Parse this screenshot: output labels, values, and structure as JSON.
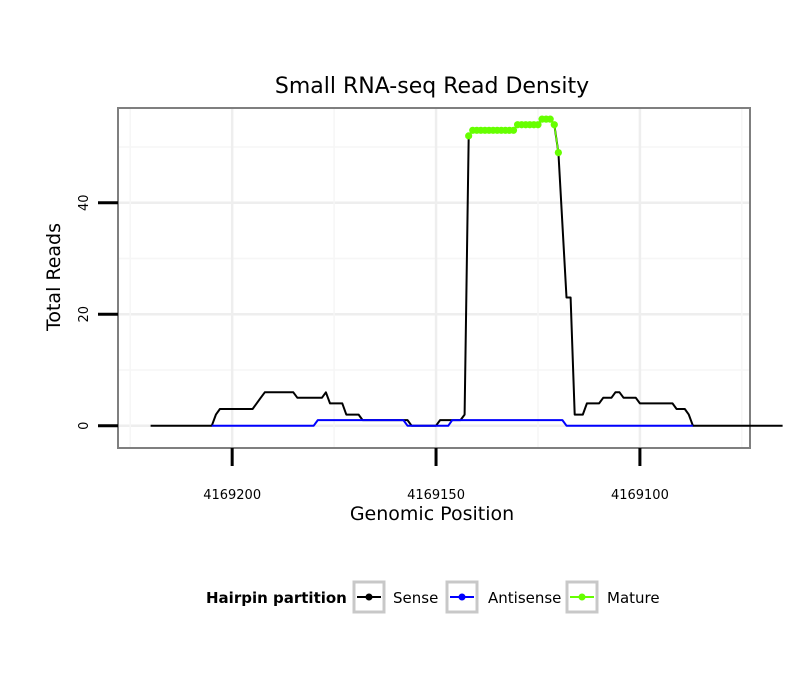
{
  "chart_data": {
    "type": "line",
    "title": "Small RNA-seq Read Density",
    "xlabel": "Genomic Position",
    "ylabel": "Total Reads",
    "x_reversed": true,
    "xlim": [
      4169228,
      4169073
    ],
    "ylim": [
      -4,
      57
    ],
    "x_ticks": [
      4169200,
      4169150,
      4169100
    ],
    "x_tick_labels": [
      "4169200",
      "4169150",
      "4169100"
    ],
    "y_ticks": [
      0,
      20,
      40
    ],
    "y_tick_labels": [
      "0",
      "20",
      "40"
    ],
    "grid": true,
    "legend_title": "Hairpin partition",
    "legend_position": "bottom",
    "series": [
      {
        "name": "Sense",
        "color": "#000000",
        "points": [
          [
            4169220,
            0
          ],
          [
            4169212,
            0
          ],
          [
            4169206,
            0
          ],
          [
            4169205,
            0
          ],
          [
            4169204,
            2
          ],
          [
            4169203,
            3
          ],
          [
            4169202,
            3
          ],
          [
            4169195,
            3
          ],
          [
            4169193,
            5
          ],
          [
            4169192,
            6
          ],
          [
            4169185,
            6
          ],
          [
            4169184,
            5
          ],
          [
            4169178,
            5
          ],
          [
            4169177,
            6
          ],
          [
            4169176,
            4
          ],
          [
            4169173,
            4
          ],
          [
            4169172,
            2
          ],
          [
            4169169,
            2
          ],
          [
            4169168,
            1
          ],
          [
            4169157,
            1
          ],
          [
            4169156,
            0
          ],
          [
            4169150,
            0
          ],
          [
            4169149,
            1
          ],
          [
            4169144,
            1
          ],
          [
            4169143,
            2
          ],
          [
            4169142,
            52
          ],
          [
            4169141,
            53
          ],
          [
            4169131,
            53
          ],
          [
            4169130,
            54
          ],
          [
            4169125,
            54
          ],
          [
            4169124,
            55
          ],
          [
            4169122,
            55
          ],
          [
            4169121,
            54
          ],
          [
            4169120,
            49
          ],
          [
            4169118,
            23
          ],
          [
            4169117,
            23
          ],
          [
            4169116,
            2
          ],
          [
            4169114,
            2
          ],
          [
            4169113,
            4
          ],
          [
            4169110,
            4
          ],
          [
            4169109,
            5
          ],
          [
            4169107,
            5
          ],
          [
            4169106,
            6
          ],
          [
            4169105,
            6
          ],
          [
            4169104,
            5
          ],
          [
            4169101,
            5
          ],
          [
            4169100,
            4
          ],
          [
            4169092,
            4
          ],
          [
            4169091,
            3
          ],
          [
            4169089,
            3
          ],
          [
            4169088,
            2
          ],
          [
            4169087,
            0
          ],
          [
            4169065,
            0
          ]
        ]
      },
      {
        "name": "Antisense",
        "color": "#0000ff",
        "points": [
          [
            4169205,
            0
          ],
          [
            4169180,
            0
          ],
          [
            4169179,
            1
          ],
          [
            4169158,
            1
          ],
          [
            4169157,
            0
          ],
          [
            4169147,
            0
          ],
          [
            4169146,
            1
          ],
          [
            4169127,
            1
          ],
          [
            4169126,
            1
          ],
          [
            4169119,
            1
          ],
          [
            4169118,
            0
          ],
          [
            4169087,
            0
          ]
        ]
      },
      {
        "name": "Mature",
        "color": "#66ff00",
        "points": [
          [
            4169142,
            52
          ],
          [
            4169141,
            53
          ],
          [
            4169140,
            53
          ],
          [
            4169139,
            53
          ],
          [
            4169138,
            53
          ],
          [
            4169137,
            53
          ],
          [
            4169136,
            53
          ],
          [
            4169135,
            53
          ],
          [
            4169134,
            53
          ],
          [
            4169133,
            53
          ],
          [
            4169132,
            53
          ],
          [
            4169131,
            53
          ],
          [
            4169130,
            54
          ],
          [
            4169129,
            54
          ],
          [
            4169128,
            54
          ],
          [
            4169127,
            54
          ],
          [
            4169126,
            54
          ],
          [
            4169125,
            54
          ],
          [
            4169124,
            55
          ],
          [
            4169123,
            55
          ],
          [
            4169122,
            55
          ],
          [
            4169121,
            54
          ],
          [
            4169120,
            49
          ]
        ]
      }
    ]
  }
}
